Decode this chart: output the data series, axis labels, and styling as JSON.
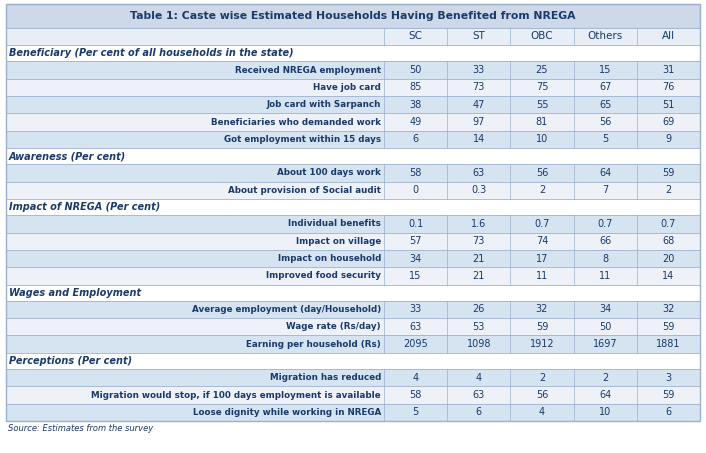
{
  "title": "Table 1: Caste wise Estimated Households Having Benefited from NREGA",
  "col_headers": [
    "SC",
    "ST",
    "OBC",
    "Others",
    "All"
  ],
  "sections": [
    {
      "header": "Beneficiary (Per cent of all households in the state)",
      "rows": [
        {
          "label": "Received NREGA employment",
          "values": [
            "50",
            "33",
            "25",
            "15",
            "31"
          ],
          "shaded": true
        },
        {
          "label": "Have job card",
          "values": [
            "85",
            "73",
            "75",
            "67",
            "76"
          ],
          "shaded": false
        },
        {
          "label": "Job card with Sarpanch",
          "values": [
            "38",
            "47",
            "55",
            "65",
            "51"
          ],
          "shaded": true
        },
        {
          "label": "Beneficiaries who demanded work",
          "values": [
            "49",
            "97",
            "81",
            "56",
            "69"
          ],
          "shaded": false
        },
        {
          "label": "Got employment within 15 days",
          "values": [
            "6",
            "14",
            "10",
            "5",
            "9"
          ],
          "shaded": true
        }
      ]
    },
    {
      "header": "Awareness (Per cent)",
      "rows": [
        {
          "label": "About 100 days work",
          "values": [
            "58",
            "63",
            "56",
            "64",
            "59"
          ],
          "shaded": true
        },
        {
          "label": "About provision of Social audit",
          "values": [
            "0",
            "0.3",
            "2",
            "7",
            "2"
          ],
          "shaded": false
        }
      ]
    },
    {
      "header": "Impact of NREGA (Per cent)",
      "rows": [
        {
          "label": "Individual benefits",
          "values": [
            "0.1",
            "1.6",
            "0.7",
            "0.7",
            "0.7"
          ],
          "shaded": true
        },
        {
          "label": "Impact on village",
          "values": [
            "57",
            "73",
            "74",
            "66",
            "68"
          ],
          "shaded": false
        },
        {
          "label": "Impact on household",
          "values": [
            "34",
            "21",
            "17",
            "8",
            "20"
          ],
          "shaded": true
        },
        {
          "label": "Improved food security",
          "values": [
            "15",
            "21",
            "11",
            "11",
            "14"
          ],
          "shaded": false
        }
      ]
    },
    {
      "header": "Wages and Employment",
      "rows": [
        {
          "label": "Average employment (day/Household)",
          "values": [
            "33",
            "26",
            "32",
            "34",
            "32"
          ],
          "shaded": true
        },
        {
          "label": "Wage rate (Rs/day)",
          "values": [
            "63",
            "53",
            "59",
            "50",
            "59"
          ],
          "shaded": false
        },
        {
          "label": "Earning per household (Rs)",
          "values": [
            "2095",
            "1098",
            "1912",
            "1697",
            "1881"
          ],
          "shaded": true
        }
      ]
    },
    {
      "header": "Perceptions (Per cent)",
      "rows": [
        {
          "label": "Migration has reduced",
          "values": [
            "4",
            "4",
            "2",
            "2",
            "3"
          ],
          "shaded": true
        },
        {
          "label": "Migration would stop, if 100 days employment is available",
          "values": [
            "58",
            "63",
            "56",
            "64",
            "59"
          ],
          "shaded": false
        },
        {
          "label": "Loose dignity while working in NREGA",
          "values": [
            "5",
            "6",
            "4",
            "10",
            "6"
          ],
          "shaded": true
        }
      ]
    }
  ],
  "source_text": "Source: Estimates from the survey",
  "title_bg": "#cdd8e8",
  "title_fg": "#1a3a6b",
  "col_header_bg": "#e8eef6",
  "col_header_fg": "#1a3a6b",
  "section_bg": "#ffffff",
  "section_fg": "#1a3a6b",
  "row_shaded_bg": "#d6e3f0",
  "row_unshaded_bg": "#eef2f8",
  "row_fg": "#1a3a6b",
  "border_color": "#9ab0cc",
  "outer_border_color": "#9ab0cc",
  "source_fg": "#1a3a6b",
  "figwidth": 7.06,
  "figheight": 4.53,
  "dpi": 100
}
